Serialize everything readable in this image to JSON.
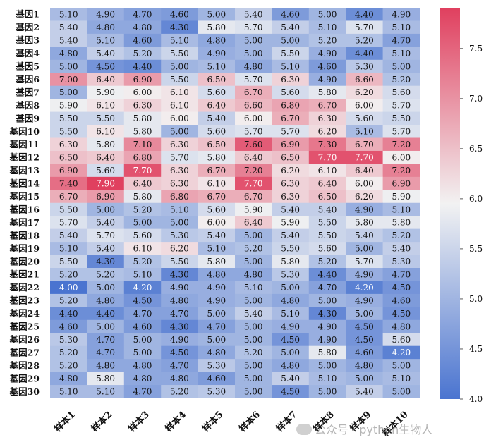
{
  "chart_data": {
    "type": "heatmap",
    "title": "",
    "xlabel": "",
    "ylabel": "",
    "columns": [
      "样本1",
      "样本2",
      "样本3",
      "样本4",
      "样本5",
      "样本6",
      "样本7",
      "样本8",
      "样本9",
      "样本10"
    ],
    "rows": [
      "基因1",
      "基因2",
      "基因3",
      "基因4",
      "基因5",
      "基因6",
      "基因7",
      "基因8",
      "基因9",
      "基因10",
      "基因11",
      "基因12",
      "基因13",
      "基因14",
      "基因15",
      "基因16",
      "基因17",
      "基因18",
      "基因19",
      "基因20",
      "基因21",
      "基因22",
      "基因23",
      "基因24",
      "基因25",
      "基因26",
      "基因27",
      "基因28",
      "基因29",
      "基因30"
    ],
    "values": [
      [
        5.1,
        4.9,
        4.7,
        4.6,
        5.0,
        5.4,
        4.6,
        5.0,
        4.4,
        4.9
      ],
      [
        5.4,
        4.8,
        4.8,
        4.3,
        5.8,
        5.7,
        5.4,
        5.1,
        5.7,
        5.1
      ],
      [
        5.4,
        5.1,
        4.6,
        5.1,
        4.8,
        5.0,
        5.0,
        5.2,
        5.2,
        4.7
      ],
      [
        4.8,
        5.4,
        5.2,
        5.5,
        4.9,
        5.0,
        5.5,
        4.9,
        4.4,
        5.1
      ],
      [
        5.0,
        4.5,
        4.4,
        5.0,
        5.1,
        4.8,
        5.1,
        4.6,
        5.3,
        5.0
      ],
      [
        7.0,
        6.4,
        6.9,
        5.5,
        6.5,
        5.7,
        6.3,
        4.9,
        6.6,
        5.2
      ],
      [
        5.0,
        5.9,
        6.0,
        6.1,
        5.6,
        6.7,
        5.6,
        5.8,
        6.2,
        5.6
      ],
      [
        5.9,
        6.1,
        6.3,
        6.1,
        6.4,
        6.6,
        6.8,
        6.7,
        6.0,
        5.7
      ],
      [
        5.5,
        5.5,
        5.8,
        6.0,
        5.4,
        6.0,
        6.7,
        6.3,
        5.6,
        5.5
      ],
      [
        5.5,
        6.1,
        5.8,
        5.0,
        5.6,
        5.7,
        5.7,
        6.2,
        5.1,
        5.7
      ],
      [
        6.3,
        5.8,
        7.1,
        6.3,
        6.5,
        7.6,
        6.9,
        7.3,
        6.7,
        7.2
      ],
      [
        6.5,
        6.4,
        6.8,
        5.7,
        5.8,
        6.4,
        6.5,
        7.7,
        7.7,
        6.0
      ],
      [
        6.9,
        5.6,
        7.7,
        6.3,
        6.7,
        7.2,
        6.2,
        6.1,
        6.4,
        7.2
      ],
      [
        7.4,
        7.9,
        6.4,
        6.3,
        6.1,
        7.7,
        6.3,
        6.4,
        6.0,
        6.9
      ],
      [
        6.7,
        6.9,
        5.8,
        6.8,
        6.7,
        6.7,
        6.3,
        6.5,
        6.2,
        5.9
      ],
      [
        5.5,
        5.0,
        5.2,
        5.1,
        5.6,
        5.9,
        5.4,
        5.4,
        4.9,
        5.1
      ],
      [
        5.7,
        5.4,
        5.0,
        5.0,
        6.0,
        6.4,
        5.9,
        5.5,
        5.8,
        5.8
      ],
      [
        5.4,
        5.7,
        5.6,
        5.3,
        5.4,
        5.0,
        5.4,
        5.5,
        5.4,
        5.2
      ],
      [
        5.1,
        5.4,
        6.1,
        6.2,
        5.1,
        5.2,
        5.5,
        5.6,
        5.0,
        5.4
      ],
      [
        5.5,
        4.3,
        5.2,
        5.5,
        5.8,
        5.0,
        5.8,
        5.2,
        5.7,
        5.3
      ],
      [
        5.2,
        5.2,
        5.1,
        4.3,
        4.8,
        4.8,
        5.3,
        4.4,
        4.9,
        4.7
      ],
      [
        4.0,
        5.0,
        4.2,
        4.9,
        4.9,
        5.1,
        5.0,
        4.7,
        4.2,
        4.5
      ],
      [
        5.2,
        4.8,
        4.5,
        4.8,
        4.9,
        5.0,
        4.8,
        5.0,
        4.9,
        4.6
      ],
      [
        4.4,
        4.4,
        4.7,
        4.7,
        5.0,
        5.4,
        5.1,
        4.3,
        5.0,
        4.5
      ],
      [
        4.6,
        5.0,
        4.6,
        4.3,
        4.7,
        5.0,
        4.9,
        4.9,
        4.5,
        4.8
      ],
      [
        5.3,
        4.7,
        5.0,
        4.9,
        5.0,
        5.0,
        4.5,
        4.9,
        4.5,
        5.6
      ],
      [
        5.2,
        4.7,
        5.0,
        4.5,
        4.8,
        5.2,
        5.0,
        5.8,
        4.6,
        4.2
      ],
      [
        5.2,
        4.8,
        4.8,
        4.7,
        5.3,
        5.0,
        4.8,
        5.0,
        4.8,
        5.0
      ],
      [
        4.8,
        5.8,
        4.8,
        4.8,
        4.6,
        5.0,
        5.4,
        5.1,
        5.0,
        5.1
      ],
      [
        5.1,
        5.1,
        4.7,
        5.2,
        5.3,
        5.0,
        4.5,
        5.0,
        5.4,
        5.0
      ]
    ],
    "value_format": "2 decimals",
    "vmin": 4.0,
    "vmax": 7.9,
    "colorbar": {
      "ticks": [
        4.0,
        4.5,
        5.0,
        5.5,
        6.0,
        6.5,
        7.0,
        7.5
      ]
    },
    "colormap": {
      "low": "#4a74d0",
      "mid": "#f2f2f2",
      "high": "#e0405f"
    },
    "grid": false,
    "legend": "colorbar-right"
  },
  "watermark": {
    "text": "公众号 · python生物人"
  }
}
